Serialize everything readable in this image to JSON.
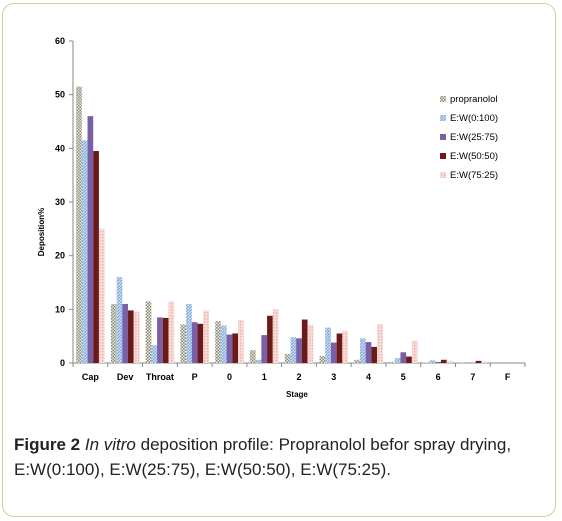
{
  "caption": {
    "label": "Figure 2",
    "italic": "In vitro",
    "text": " deposition profile: Propranolol befor spray drying, E:W(0:100), E:W(25:75), E:W(50:50), E:W(75:25)."
  },
  "chart_data": {
    "type": "bar",
    "title": "",
    "xlabel": "Stage",
    "ylabel": "Deposition%",
    "ylim": [
      0,
      60
    ],
    "yticks": [
      0,
      10,
      20,
      30,
      40,
      50,
      60
    ],
    "grid": false,
    "legend_position": "right",
    "categories": [
      "Cap",
      "Dev",
      "Throat",
      "P",
      "0",
      "1",
      "2",
      "3",
      "4",
      "5",
      "6",
      "7",
      "F"
    ],
    "series": [
      {
        "name": "propranolol",
        "color": "#8c8c7a",
        "pattern": "checker",
        "values": [
          51.5,
          11,
          11.5,
          7.2,
          7.8,
          2.4,
          1.7,
          1.3,
          0.6,
          0.2,
          0.1,
          0.1,
          0
        ]
      },
      {
        "name": "E:W(0:100)",
        "color": "#7fa9d9",
        "pattern": "hatch",
        "values": [
          41.5,
          16,
          3.3,
          11,
          7,
          0.6,
          4.8,
          6.6,
          4.6,
          0.9,
          0.5,
          0,
          0
        ]
      },
      {
        "name": "E:W(25:75)",
        "color": "#7b5fa6",
        "pattern": "solid",
        "values": [
          46,
          11,
          8.5,
          7.6,
          5.3,
          5.2,
          4.6,
          3.8,
          3.9,
          2,
          0.2,
          0,
          0
        ]
      },
      {
        "name": "E:W(50:50)",
        "color": "#6b1a1a",
        "pattern": "solid",
        "values": [
          39.5,
          9.8,
          8.4,
          7.3,
          5.5,
          8.8,
          8.1,
          5.5,
          3,
          1.2,
          0.6,
          0.4,
          0
        ]
      },
      {
        "name": "E:W(75:25)",
        "color": "#f0b3ad",
        "pattern": "dots",
        "values": [
          25,
          9.6,
          11.5,
          9.8,
          8,
          10,
          7.1,
          6,
          7.2,
          4.2,
          0.4,
          0.3,
          0
        ]
      }
    ]
  }
}
